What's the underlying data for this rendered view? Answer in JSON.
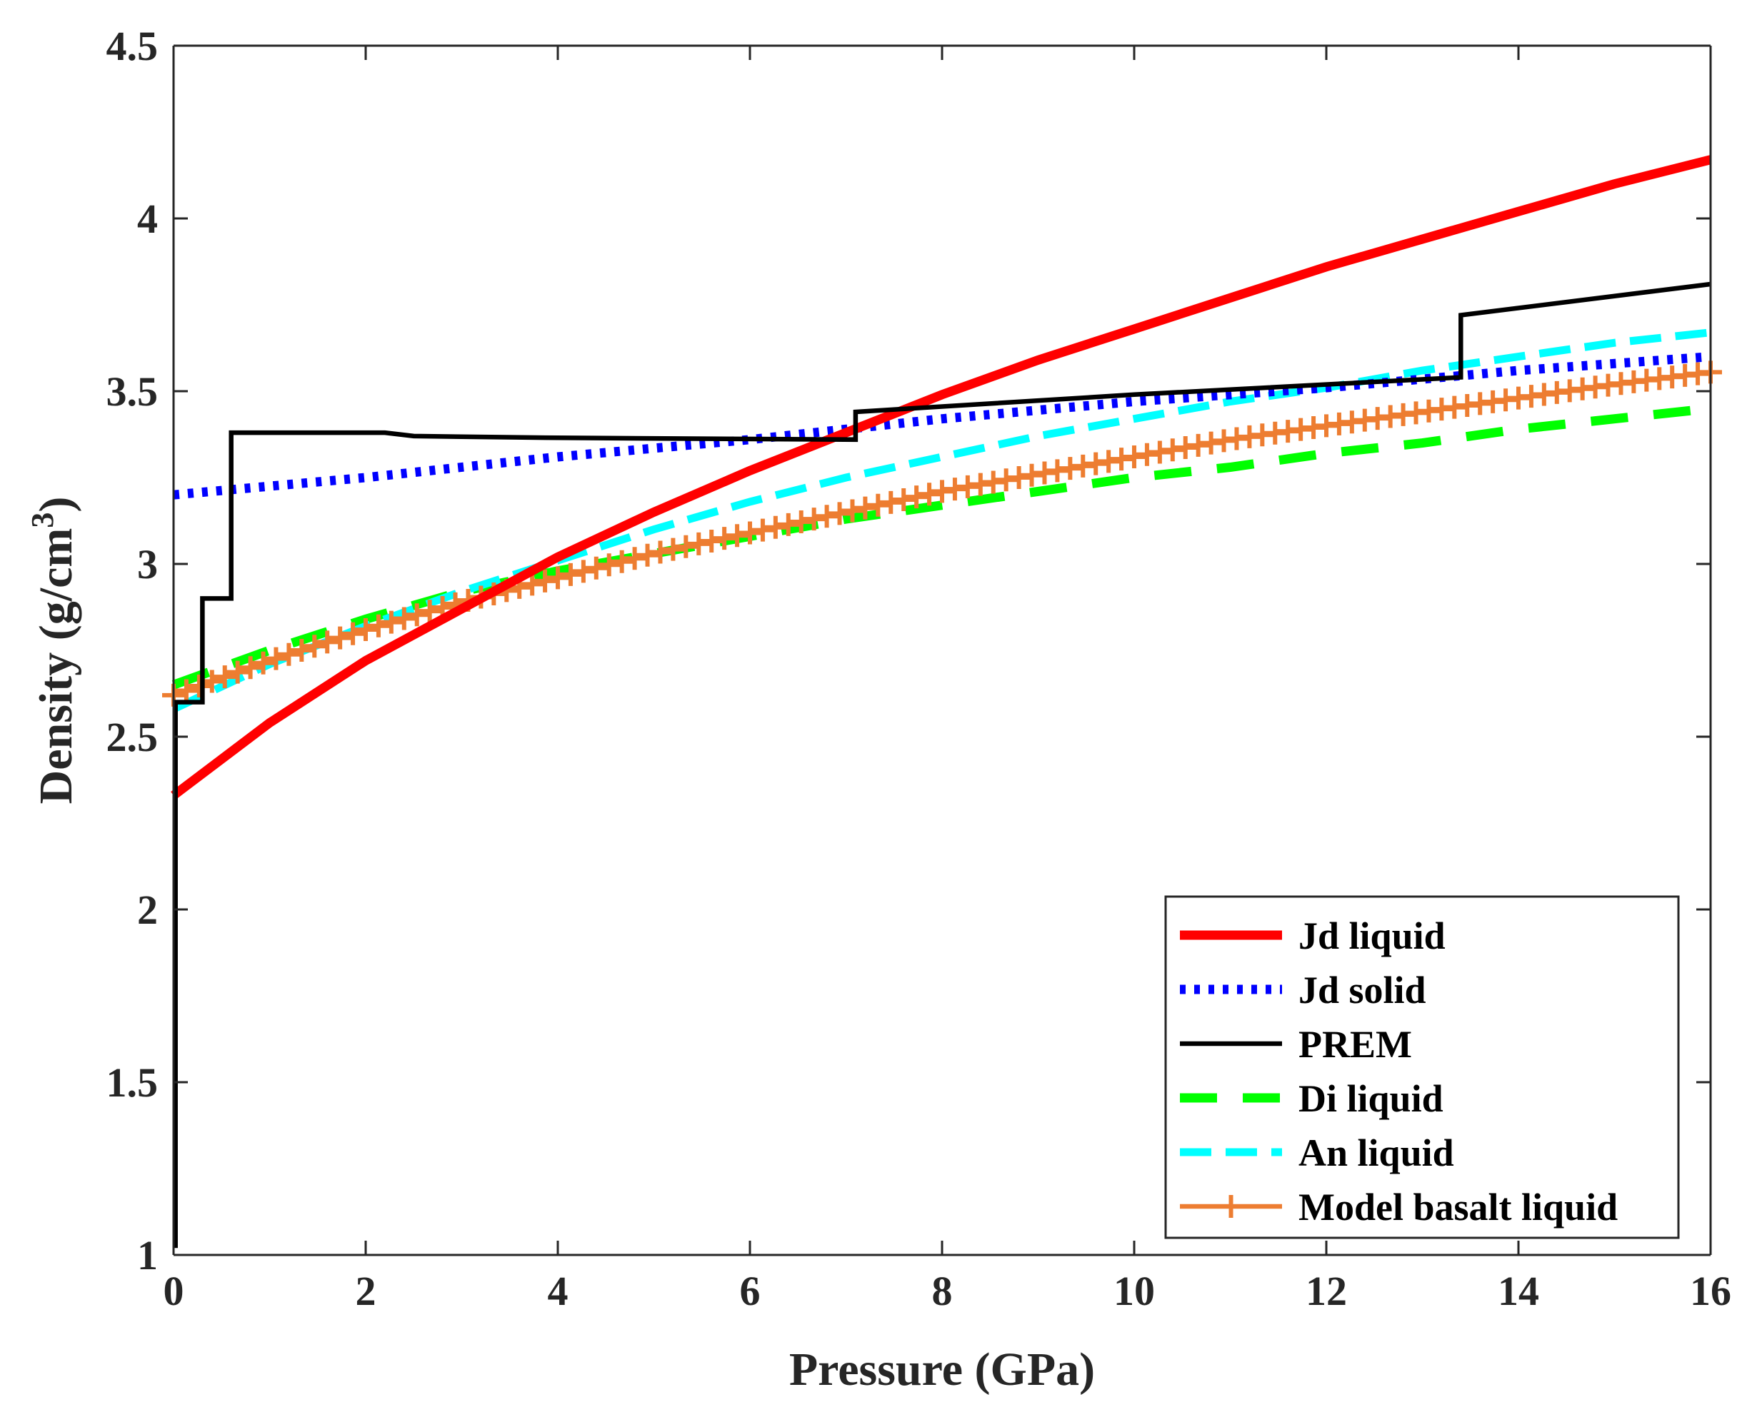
{
  "chart_data": {
    "type": "line",
    "xlabel": "Pressure (GPa)",
    "ylabel_main": "Density (g/cm",
    "ylabel_sup": "3",
    "ylabel_close": ")",
    "xlim": [
      0,
      16
    ],
    "ylim": [
      1,
      4.5
    ],
    "xticks": [
      0,
      2,
      4,
      6,
      8,
      10,
      12,
      14,
      16
    ],
    "xtick_labels": [
      "0",
      "2",
      "4",
      "6",
      "8",
      "10",
      "12",
      "14",
      "16"
    ],
    "yticks": [
      1,
      1.5,
      2,
      2.5,
      3,
      3.5,
      4,
      4.5
    ],
    "ytick_labels": [
      "1",
      "1.5",
      "2",
      "2.5",
      "3",
      "3.5",
      "4",
      "4.5"
    ],
    "legend_position": "bottom-right",
    "series": [
      {
        "name": "Jd liquid",
        "color": "#ff0000",
        "style": "solid-thick",
        "x": [
          0,
          1,
          2,
          3,
          4,
          5,
          6,
          7,
          8,
          9,
          10,
          11,
          12,
          13,
          14,
          15,
          16
        ],
        "y": [
          2.33,
          2.54,
          2.72,
          2.87,
          3.02,
          3.15,
          3.27,
          3.38,
          3.49,
          3.59,
          3.68,
          3.77,
          3.86,
          3.94,
          4.02,
          4.1,
          4.17
        ]
      },
      {
        "name": "Jd solid",
        "color": "#0000ff",
        "style": "dotted",
        "x": [
          0,
          2,
          4,
          6,
          8,
          10,
          12,
          14,
          16
        ],
        "y": [
          3.2,
          3.25,
          3.31,
          3.36,
          3.42,
          3.47,
          3.51,
          3.56,
          3.6
        ]
      },
      {
        "name": "PREM",
        "color": "#000000",
        "style": "solid",
        "x": [
          0.02,
          0.02,
          0.25,
          0.25,
          0.3,
          0.3,
          0.6,
          0.6,
          2.2,
          2.5,
          4.0,
          7.1,
          7.1,
          10.0,
          13.4,
          13.4,
          16.0
        ],
        "y": [
          1.02,
          2.6,
          2.6,
          2.6,
          2.6,
          2.9,
          2.9,
          3.38,
          3.38,
          3.37,
          3.365,
          3.36,
          3.44,
          3.49,
          3.54,
          3.72,
          3.81
        ]
      },
      {
        "name": "Di liquid",
        "color": "#00ff00",
        "style": "dashed-long",
        "x": [
          0,
          1,
          2,
          3,
          4,
          5,
          6,
          7,
          8,
          9,
          10,
          11,
          12,
          13,
          14,
          15,
          16
        ],
        "y": [
          2.65,
          2.75,
          2.84,
          2.92,
          2.98,
          3.03,
          3.08,
          3.13,
          3.17,
          3.21,
          3.25,
          3.28,
          3.32,
          3.35,
          3.39,
          3.42,
          3.45
        ]
      },
      {
        "name": "An liquid",
        "color": "#00ffff",
        "style": "dashed",
        "x": [
          0,
          1,
          2,
          3,
          4,
          5,
          6,
          7,
          8,
          9,
          10,
          11,
          12,
          13,
          14,
          15,
          16
        ],
        "y": [
          2.58,
          2.71,
          2.82,
          2.92,
          3.01,
          3.1,
          3.18,
          3.25,
          3.31,
          3.37,
          3.42,
          3.47,
          3.51,
          3.56,
          3.6,
          3.64,
          3.67
        ]
      },
      {
        "name": "Model basalt liquid",
        "color": "#ed7d31",
        "style": "solid-plus",
        "x": [
          0,
          1,
          2,
          3,
          4,
          5,
          6,
          7,
          8,
          9,
          10,
          11,
          12,
          13,
          14,
          15,
          16
        ],
        "y": [
          2.62,
          2.72,
          2.81,
          2.89,
          2.96,
          3.03,
          3.09,
          3.15,
          3.21,
          3.26,
          3.31,
          3.36,
          3.4,
          3.44,
          3.48,
          3.52,
          3.555
        ]
      }
    ]
  }
}
